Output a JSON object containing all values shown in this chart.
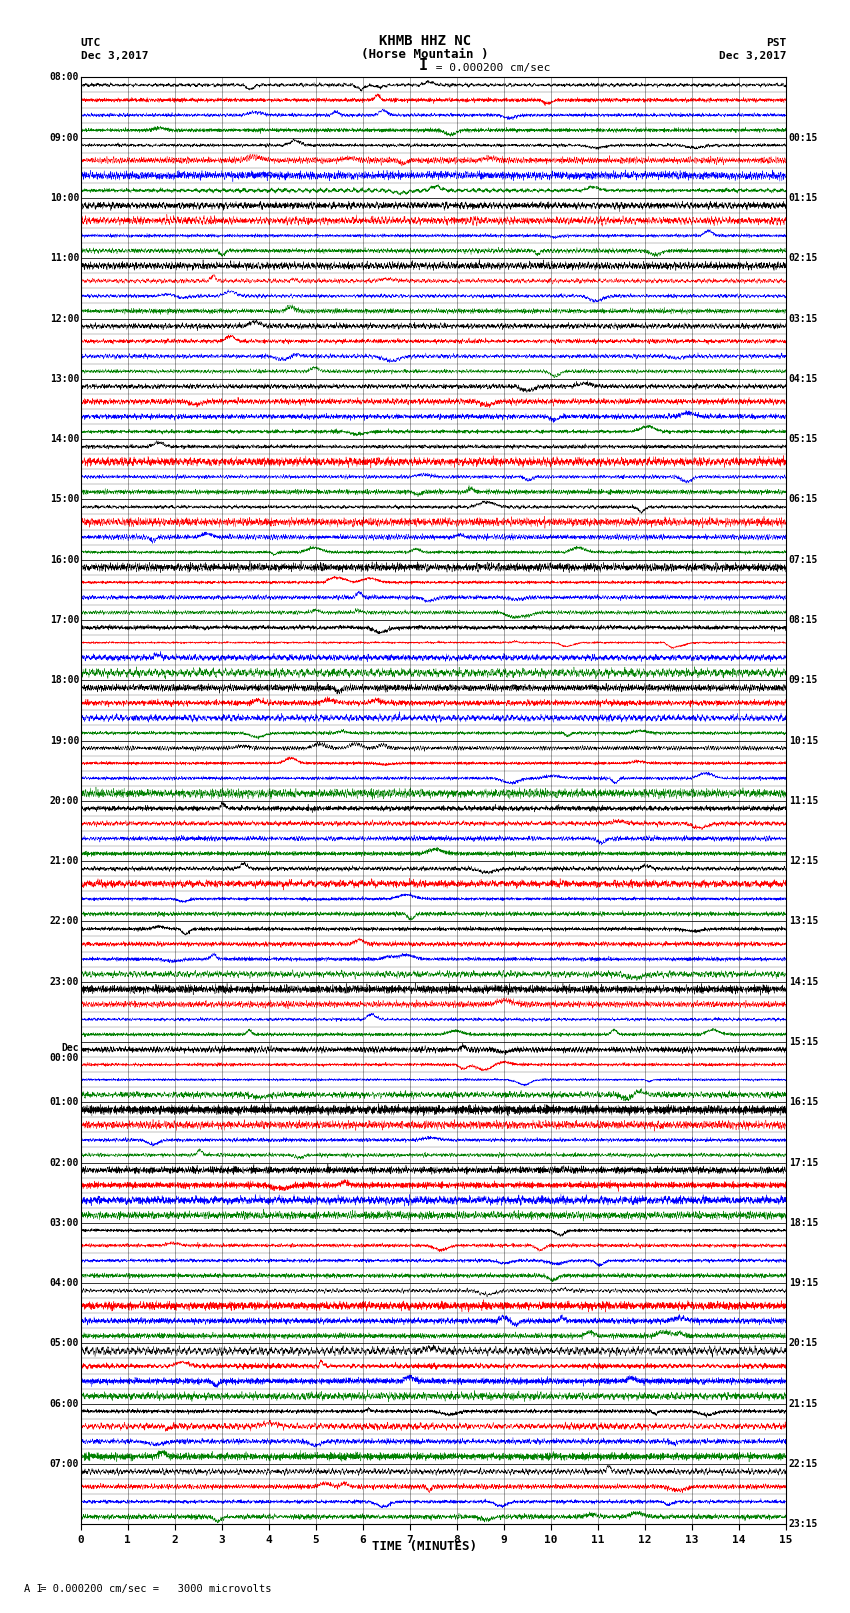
{
  "title_line1": "KHMB HHZ NC",
  "title_line2": "(Horse Mountain )",
  "scale_label": " = 0.000200 cm/sec",
  "left_header_line1": "UTC",
  "left_header_line2": "Dec 3,2017",
  "right_header_line1": "PST",
  "right_header_line2": "Dec 3,2017",
  "xlabel": "TIME (MINUTES)",
  "footer": " = 0.000200 cm/sec =   3000 microvolts",
  "bg_color": "white",
  "trace_colors": [
    "black",
    "red",
    "blue",
    "green"
  ],
  "n_traces_per_row": 4,
  "n_rows": 24,
  "left_times": [
    "08:00",
    "09:00",
    "10:00",
    "11:00",
    "12:00",
    "13:00",
    "14:00",
    "15:00",
    "16:00",
    "17:00",
    "18:00",
    "19:00",
    "20:00",
    "21:00",
    "22:00",
    "23:00",
    "Dec\n00:00",
    "01:00",
    "02:00",
    "03:00",
    "04:00",
    "05:00",
    "06:00",
    "07:00"
  ],
  "right_times": [
    "00:15",
    "01:15",
    "02:15",
    "03:15",
    "04:15",
    "05:15",
    "06:15",
    "07:15",
    "08:15",
    "09:15",
    "10:15",
    "11:15",
    "12:15",
    "13:15",
    "14:15",
    "15:15",
    "16:15",
    "17:15",
    "18:15",
    "19:15",
    "20:15",
    "21:15",
    "22:15",
    "23:15"
  ],
  "xticks": [
    0,
    1,
    2,
    3,
    4,
    5,
    6,
    7,
    8,
    9,
    10,
    11,
    12,
    13,
    14,
    15
  ],
  "figsize": [
    8.5,
    16.13
  ],
  "dpi": 100,
  "trace_lw": 0.3,
  "n_pts": 4500,
  "amp_scale": 0.42
}
